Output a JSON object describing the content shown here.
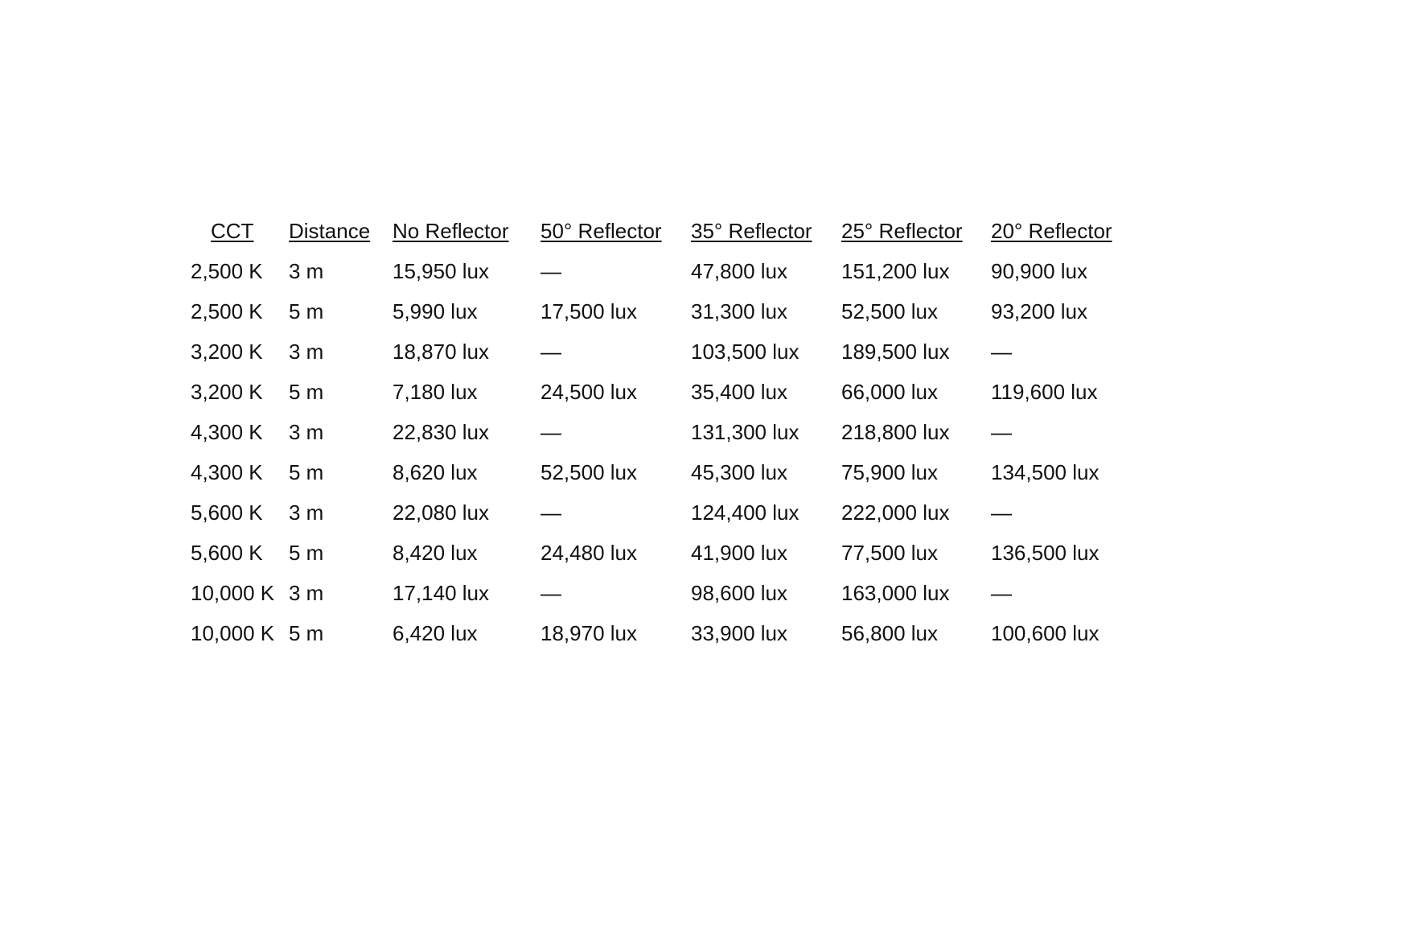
{
  "table": {
    "headers": [
      "CCT",
      "Distance",
      "No Reflector",
      "50° Reflector",
      "35° Reflector",
      "25° Reflector",
      "20° Reflector"
    ],
    "rows": [
      [
        "2,500 K",
        "3 m",
        "15,950 lux",
        "—",
        "47,800 lux",
        "151,200 lux",
        "90,900 lux"
      ],
      [
        "2,500 K",
        "5 m",
        "5,990 lux",
        "17,500 lux",
        "31,300 lux",
        "52,500 lux",
        "93,200 lux"
      ],
      [
        "3,200 K",
        "3 m",
        "18,870 lux",
        "—",
        "103,500 lux",
        "189,500 lux",
        "—"
      ],
      [
        "3,200 K",
        "5 m",
        "7,180 lux",
        "24,500 lux",
        "35,400 lux",
        "66,000 lux",
        "119,600 lux"
      ],
      [
        "4,300 K",
        "3 m",
        "22,830 lux",
        "—",
        "131,300 lux",
        "218,800 lux",
        "—"
      ],
      [
        "4,300 K",
        "5 m",
        "8,620 lux",
        "52,500 lux",
        "45,300 lux",
        "75,900 lux",
        "134,500 lux"
      ],
      [
        "5,600 K",
        "3 m",
        "22,080 lux",
        "—",
        "124,400 lux",
        "222,000 lux",
        "—"
      ],
      [
        "5,600 K",
        "5 m",
        "8,420 lux",
        "24,480 lux",
        "41,900 lux",
        "77,500 lux",
        "136,500 lux"
      ],
      [
        "10,000 K",
        "3 m",
        "17,140 lux",
        "—",
        "98,600 lux",
        "163,000 lux",
        "—"
      ],
      [
        "10,000 K",
        "5 m",
        "6,420 lux",
        "18,970 lux",
        "33,900 lux",
        "56,800 lux",
        "100,600 lux"
      ]
    ]
  }
}
